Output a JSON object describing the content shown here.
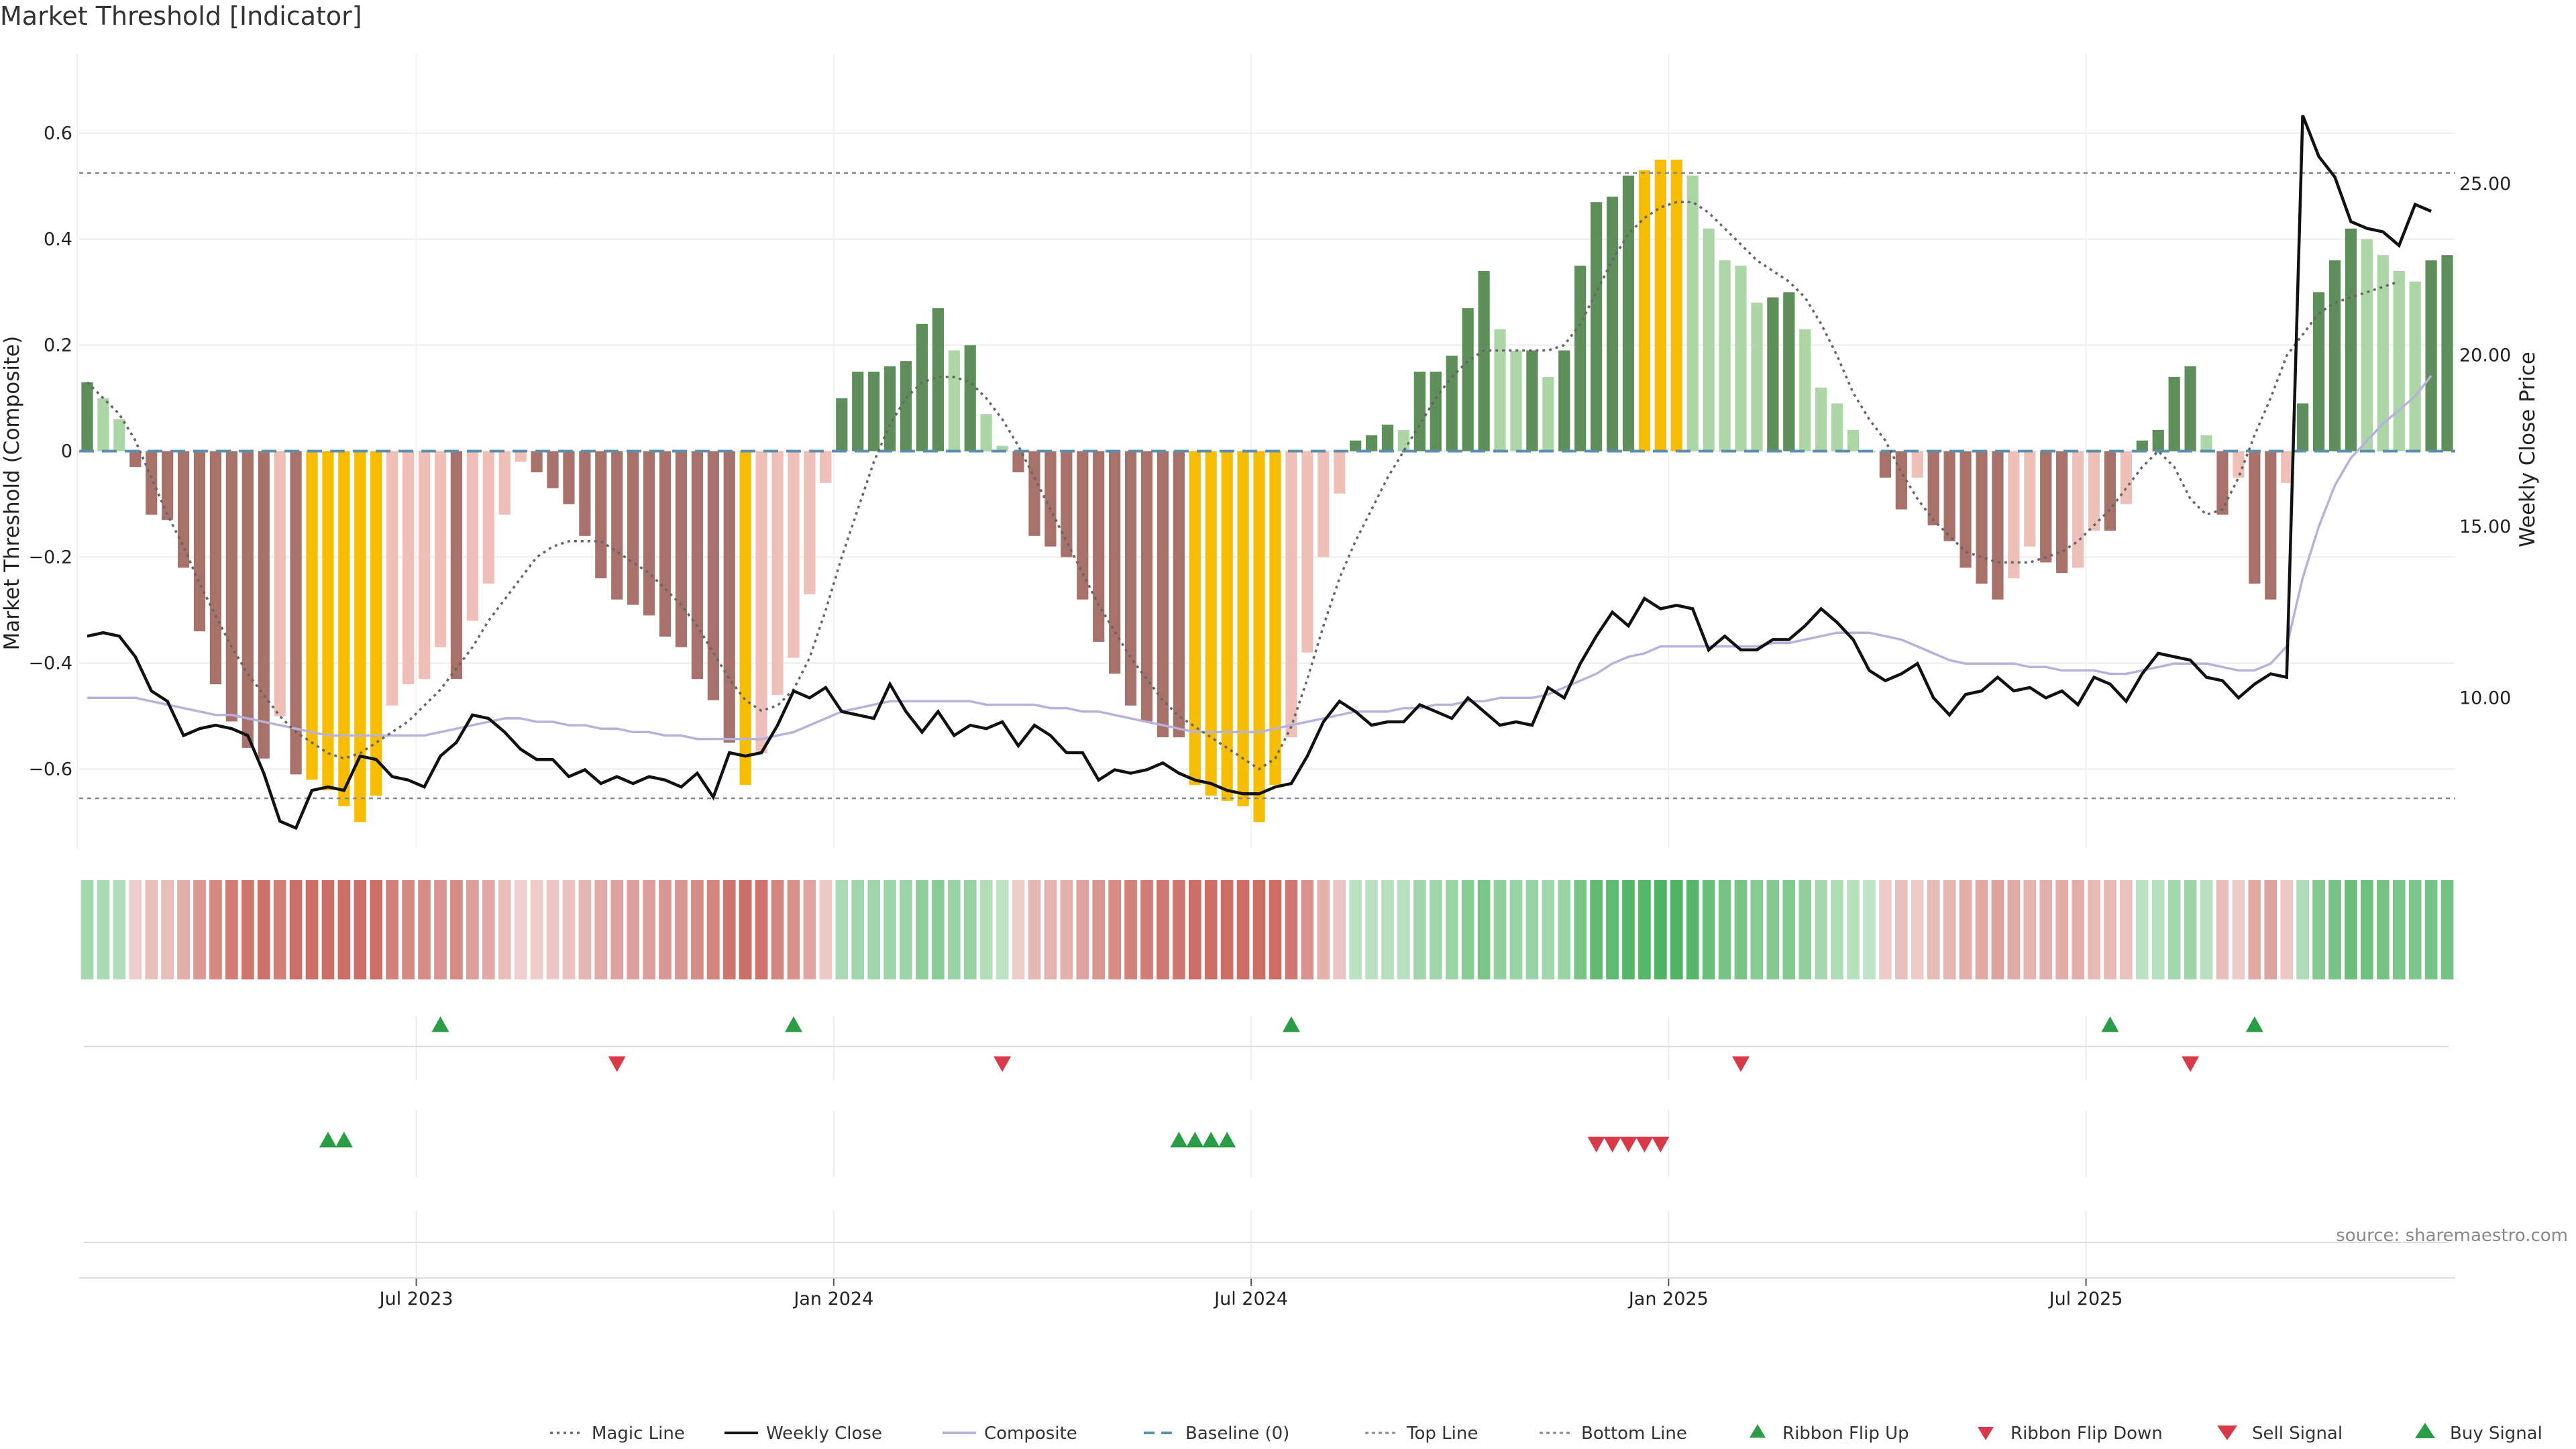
{
  "title": "Market Threshold [Indicator]",
  "source": "source: sharemaestro.com",
  "chart_data": {
    "type": "bar",
    "ylabel": "Market Threshold (Composite)",
    "y2label": "Weekly Close Price",
    "ylim": [
      -0.75,
      0.75
    ],
    "y2lim": [
      5.6,
      28.8
    ],
    "yticks": [
      0.6,
      0.4,
      0.2,
      0,
      -0.2,
      -0.4,
      -0.6
    ],
    "ytick_labels": [
      "0.6",
      "0.4",
      "0.2",
      "0",
      "−0.2",
      "−0.4",
      "−0.6"
    ],
    "y2ticks": [
      25,
      20,
      15,
      10
    ],
    "y2tick_labels": [
      "25.00",
      "20.00",
      "15.00",
      "10.00"
    ],
    "xticks": [
      21,
      47,
      73,
      99,
      125
    ],
    "xtick_labels": [
      "Jul 2023",
      "Jan 2024",
      "Jul 2024",
      "Jan 2025",
      "Jul 2025"
    ],
    "top_line": 0.525,
    "bottom_line": -0.655,
    "baseline": 0,
    "grid": true,
    "legend_position": "bottom",
    "colors": {
      "strong_bear": "#a8726a",
      "weak_bear": "#efc0b8",
      "strong_bull": "#5e8f5a",
      "weak_bull": "#acd6a6",
      "extreme": "#f7bd00",
      "close": "#111111",
      "composite": "#b7b1dc",
      "magic": "#666666",
      "baseline": "#5b8fb0",
      "threshold_line": "#888888",
      "buy": "#2a9d47",
      "sell": "#d93a4a"
    },
    "series": [
      {
        "name": "Composite",
        "values": [
          0.13,
          0.1,
          0.06,
          -0.03,
          -0.12,
          -0.13,
          -0.22,
          -0.34,
          -0.44,
          -0.51,
          -0.56,
          -0.58,
          -0.5,
          -0.61,
          -0.62,
          -0.64,
          -0.67,
          -0.7,
          -0.65,
          -0.48,
          -0.44,
          -0.43,
          -0.37,
          -0.43,
          -0.32,
          -0.25,
          -0.12,
          -0.02,
          -0.04,
          -0.07,
          -0.1,
          -0.16,
          -0.24,
          -0.28,
          -0.29,
          -0.31,
          -0.35,
          -0.37,
          -0.43,
          -0.47,
          -0.55,
          -0.63,
          -0.57,
          -0.46,
          -0.39,
          -0.27,
          -0.06,
          0.1,
          0.15,
          0.15,
          0.16,
          0.17,
          0.24,
          0.27,
          0.19,
          0.2,
          0.07,
          0.01,
          -0.04,
          -0.16,
          -0.18,
          -0.2,
          -0.28,
          -0.36,
          -0.42,
          -0.48,
          -0.51,
          -0.54,
          -0.54,
          -0.63,
          -0.65,
          -0.66,
          -0.67,
          -0.7,
          -0.63,
          -0.54,
          -0.38,
          -0.2,
          -0.08,
          0.02,
          0.03,
          0.05,
          0.04,
          0.15,
          0.15,
          0.18,
          0.27,
          0.34,
          0.23,
          0.19,
          0.19,
          0.14,
          0.19,
          0.35,
          0.47,
          0.48,
          0.52,
          0.53,
          0.55,
          0.55,
          0.52,
          0.42,
          0.36,
          0.35,
          0.28,
          0.29,
          0.3,
          0.23,
          0.12,
          0.09,
          0.04,
          0.0,
          -0.05,
          -0.11,
          -0.05,
          -0.14,
          -0.17,
          -0.22,
          -0.25,
          -0.28,
          -0.24,
          -0.18,
          -0.21,
          -0.23,
          -0.22,
          -0.15,
          -0.15,
          -0.1,
          0.02,
          0.04,
          0.14,
          0.16,
          0.03,
          -0.12,
          -0.05,
          -0.25,
          -0.28,
          -0.06,
          0.09,
          0.3,
          0.36,
          0.42,
          0.4,
          0.37,
          0.34,
          0.32,
          0.36,
          0.37
        ]
      },
      {
        "name": "Weekly Close",
        "values": [
          11.8,
          11.9,
          11.8,
          11.2,
          10.2,
          9.9,
          8.9,
          9.1,
          9.2,
          9.1,
          8.9,
          7.8,
          6.4,
          6.2,
          7.3,
          7.4,
          7.3,
          8.3,
          8.2,
          7.7,
          7.6,
          7.4,
          8.3,
          8.7,
          9.5,
          9.4,
          9.0,
          8.5,
          8.2,
          8.2,
          7.7,
          7.9,
          7.5,
          7.7,
          7.5,
          7.7,
          7.6,
          7.4,
          7.8,
          7.1,
          8.4,
          8.3,
          8.4,
          9.2,
          10.2,
          10.0,
          10.3,
          9.6,
          9.5,
          9.4,
          10.4,
          9.6,
          9.0,
          9.6,
          8.9,
          9.2,
          9.1,
          9.3,
          8.6,
          9.2,
          8.9,
          8.4,
          8.4,
          7.6,
          7.9,
          7.8,
          7.9,
          8.1,
          7.8,
          7.6,
          7.5,
          7.3,
          7.2,
          7.2,
          7.4,
          7.5,
          8.3,
          9.3,
          9.9,
          9.6,
          9.2,
          9.3,
          9.3,
          9.8,
          9.6,
          9.4,
          10.0,
          9.6,
          9.2,
          9.3,
          9.2,
          10.3,
          10.0,
          11.0,
          11.8,
          12.5,
          12.1,
          12.9,
          12.6,
          12.7,
          12.6,
          11.4,
          11.8,
          11.4,
          11.4,
          11.7,
          11.7,
          12.1,
          12.6,
          12.2,
          11.7,
          10.8,
          10.5,
          10.7,
          11.0,
          10.0,
          9.5,
          10.1,
          10.2,
          10.6,
          10.2,
          10.3,
          10.0,
          10.2,
          9.8,
          10.6,
          10.4,
          9.9,
          10.7,
          11.3,
          11.2,
          11.1,
          10.6,
          10.5,
          10.0,
          10.4,
          10.7,
          10.6,
          27.0,
          25.8,
          25.2,
          23.9,
          23.7,
          23.6,
          23.2,
          24.4,
          24.2
        ]
      },
      {
        "name": "Magic Line",
        "values": [
          0.13,
          0.1,
          0.07,
          0.02,
          -0.05,
          -0.12,
          -0.18,
          -0.25,
          -0.31,
          -0.37,
          -0.42,
          -0.46,
          -0.5,
          -0.53,
          -0.55,
          -0.57,
          -0.58,
          -0.57,
          -0.55,
          -0.53,
          -0.51,
          -0.48,
          -0.45,
          -0.41,
          -0.37,
          -0.32,
          -0.28,
          -0.24,
          -0.2,
          -0.18,
          -0.17,
          -0.17,
          -0.17,
          -0.19,
          -0.21,
          -0.23,
          -0.26,
          -0.29,
          -0.33,
          -0.38,
          -0.43,
          -0.47,
          -0.49,
          -0.48,
          -0.45,
          -0.39,
          -0.3,
          -0.2,
          -0.11,
          -0.02,
          0.05,
          0.1,
          0.13,
          0.14,
          0.14,
          0.13,
          0.1,
          0.06,
          0.01,
          -0.05,
          -0.11,
          -0.17,
          -0.23,
          -0.29,
          -0.34,
          -0.39,
          -0.43,
          -0.47,
          -0.5,
          -0.52,
          -0.54,
          -0.56,
          -0.58,
          -0.6,
          -0.58,
          -0.52,
          -0.43,
          -0.33,
          -0.24,
          -0.17,
          -0.11,
          -0.05,
          0.0,
          0.05,
          0.1,
          0.14,
          0.17,
          0.19,
          0.19,
          0.19,
          0.19,
          0.19,
          0.2,
          0.24,
          0.3,
          0.36,
          0.41,
          0.44,
          0.46,
          0.47,
          0.47,
          0.45,
          0.42,
          0.39,
          0.36,
          0.34,
          0.32,
          0.29,
          0.24,
          0.18,
          0.11,
          0.06,
          0.02,
          -0.04,
          -0.09,
          -0.13,
          -0.16,
          -0.19,
          -0.2,
          -0.21,
          -0.21,
          -0.21,
          -0.2,
          -0.19,
          -0.17,
          -0.14,
          -0.11,
          -0.07,
          -0.03,
          0.0,
          -0.03,
          -0.09,
          -0.12,
          -0.11,
          -0.05,
          0.03,
          0.1,
          0.18,
          0.22,
          0.26,
          0.28,
          0.29,
          0.3,
          0.31,
          0.32
        ]
      },
      {
        "name": "Composite Line",
        "values": [
          10.0,
          10.0,
          10.0,
          10.0,
          9.9,
          9.8,
          9.7,
          9.6,
          9.5,
          9.5,
          9.4,
          9.3,
          9.2,
          9.1,
          9.0,
          8.9,
          8.9,
          8.9,
          8.9,
          8.9,
          8.9,
          8.9,
          9.0,
          9.1,
          9.2,
          9.3,
          9.4,
          9.4,
          9.3,
          9.3,
          9.2,
          9.2,
          9.1,
          9.1,
          9.0,
          9.0,
          8.9,
          8.9,
          8.8,
          8.8,
          8.8,
          8.8,
          8.8,
          8.9,
          9.0,
          9.2,
          9.4,
          9.6,
          9.7,
          9.8,
          9.9,
          9.9,
          9.9,
          9.9,
          9.9,
          9.9,
          9.8,
          9.8,
          9.8,
          9.8,
          9.7,
          9.7,
          9.6,
          9.6,
          9.5,
          9.4,
          9.3,
          9.2,
          9.1,
          9.0,
          9.0,
          9.0,
          9.0,
          9.0,
          9.1,
          9.2,
          9.3,
          9.4,
          9.5,
          9.6,
          9.6,
          9.6,
          9.7,
          9.7,
          9.8,
          9.8,
          9.9,
          9.9,
          10.0,
          10.0,
          10.0,
          10.1,
          10.3,
          10.5,
          10.7,
          11.0,
          11.2,
          11.3,
          11.5,
          11.5,
          11.5,
          11.5,
          11.5,
          11.5,
          11.5,
          11.6,
          11.6,
          11.7,
          11.8,
          11.9,
          11.9,
          11.9,
          11.8,
          11.7,
          11.5,
          11.3,
          11.1,
          11.0,
          11.0,
          11.0,
          11.0,
          10.9,
          10.9,
          10.8,
          10.8,
          10.8,
          10.7,
          10.7,
          10.8,
          10.9,
          11.0,
          11.0,
          11.0,
          10.9,
          10.8,
          10.8,
          11.0,
          11.5,
          13.5,
          15.0,
          16.2,
          17.0,
          17.5,
          18.0,
          18.4,
          18.8,
          19.4
        ]
      }
    ],
    "ribbon_flip_up": [
      22,
      44,
      75,
      126,
      135
    ],
    "ribbon_flip_down": [
      33,
      57,
      103,
      131
    ],
    "buy_signal": [
      15,
      16,
      68,
      69,
      70,
      71
    ],
    "sell_signal": [
      94,
      95,
      96,
      97,
      98
    ]
  },
  "legend": [
    {
      "label": "Magic Line",
      "icon": "dotted-line-icon"
    },
    {
      "label": "Weekly Close",
      "icon": "solid-line-icon"
    },
    {
      "label": "Composite",
      "icon": "lavender-line-icon"
    },
    {
      "label": "Baseline (0)",
      "icon": "dashed-line-icon"
    },
    {
      "label": "Top Line",
      "icon": "dotted-line-icon"
    },
    {
      "label": "Bottom Line",
      "icon": "dotted-line-icon"
    },
    {
      "label": "Ribbon Flip Up",
      "icon": "triangle-up-icon"
    },
    {
      "label": "Ribbon Flip Down",
      "icon": "triangle-down-icon"
    },
    {
      "label": "Sell Signal",
      "icon": "triangle-down-icon"
    },
    {
      "label": "Buy Signal",
      "icon": "triangle-up-icon"
    }
  ]
}
